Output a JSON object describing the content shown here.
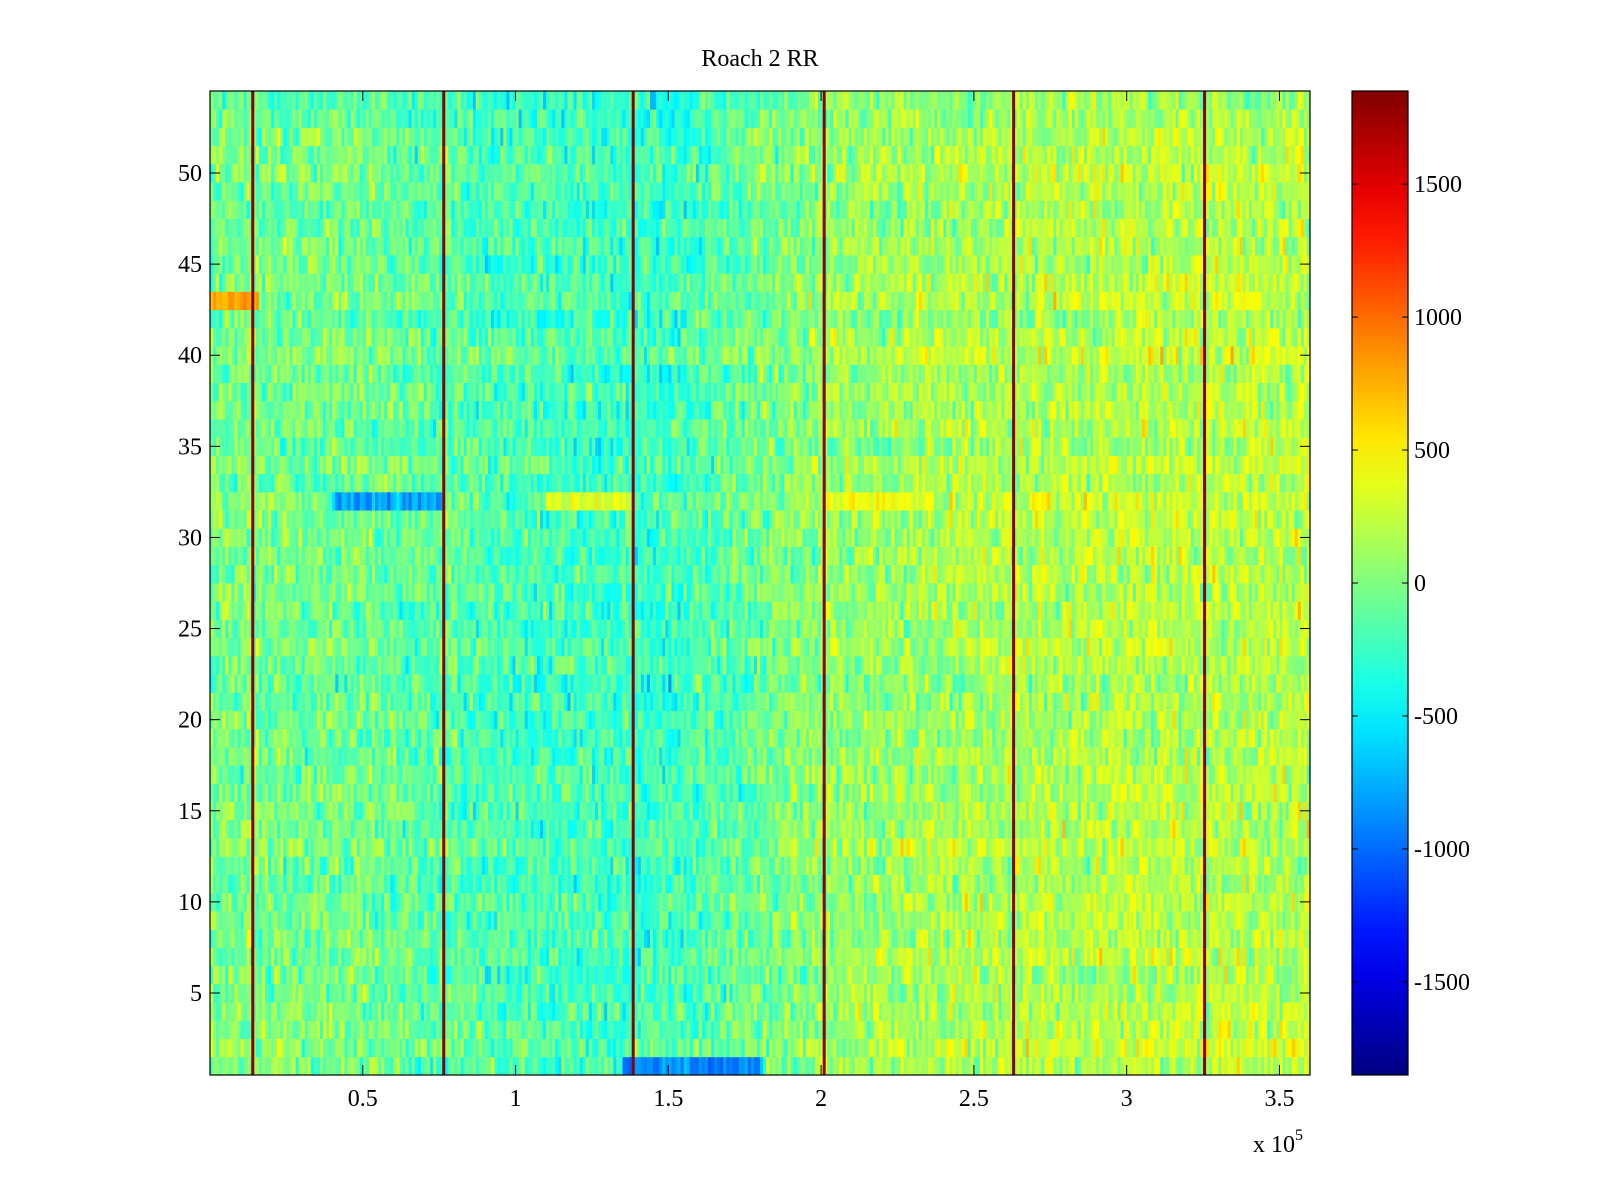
{
  "chart_data": {
    "type": "heatmap",
    "title": "Roach 2 RR",
    "xlabel": "",
    "ylabel": "",
    "x_exponent_label": "x 10",
    "x_exponent_power": "5",
    "xlim": [
      0,
      3.6
    ],
    "ylim": [
      0.5,
      54.5
    ],
    "x_ticks": [
      0.5,
      1,
      1.5,
      2,
      2.5,
      3,
      3.5
    ],
    "x_tick_labels": [
      "0.5",
      "1",
      "1.5",
      "2",
      "2.5",
      "3",
      "3.5"
    ],
    "y_ticks": [
      5,
      10,
      15,
      20,
      25,
      30,
      35,
      40,
      45,
      50
    ],
    "y_tick_labels": [
      "5",
      "10",
      "15",
      "20",
      "25",
      "30",
      "35",
      "40",
      "45",
      "50"
    ],
    "rows": 54,
    "row_range": [
      1,
      54
    ],
    "colormap": "jet",
    "clim": [
      -1850,
      1850
    ],
    "colorbar": {
      "ticks": [
        -1500,
        -1000,
        -500,
        0,
        500,
        1000,
        1500
      ],
      "tick_labels": [
        "-1500",
        "-1000",
        "-500",
        "0",
        "500",
        "1000",
        "1500"
      ],
      "placement": "right"
    },
    "vertical_lines": {
      "x": [
        0.14,
        0.765,
        1.385,
        2.01,
        2.63,
        3.255
      ],
      "value": 1850,
      "color": "#8b0000"
    },
    "column_mean_profile": {
      "x": [
        0,
        0.5,
        1.0,
        1.5,
        2.0,
        2.5,
        3.0,
        3.6
      ],
      "mean": [
        -20,
        -60,
        -200,
        -240,
        70,
        160,
        200,
        210
      ]
    },
    "banded_rows": [
      {
        "row": 32,
        "x_range": [
          0.4,
          0.75
        ],
        "level": -800
      },
      {
        "row": 32,
        "x_range": [
          1.1,
          1.38
        ],
        "level": 350
      },
      {
        "row": 32,
        "x_range": [
          2.01,
          2.3
        ],
        "level": 450
      },
      {
        "row": 43,
        "x_range": [
          0,
          0.15
        ],
        "level": 800
      },
      {
        "row": 1,
        "x_range": [
          1.35,
          1.8
        ],
        "level": -900
      }
    ]
  }
}
